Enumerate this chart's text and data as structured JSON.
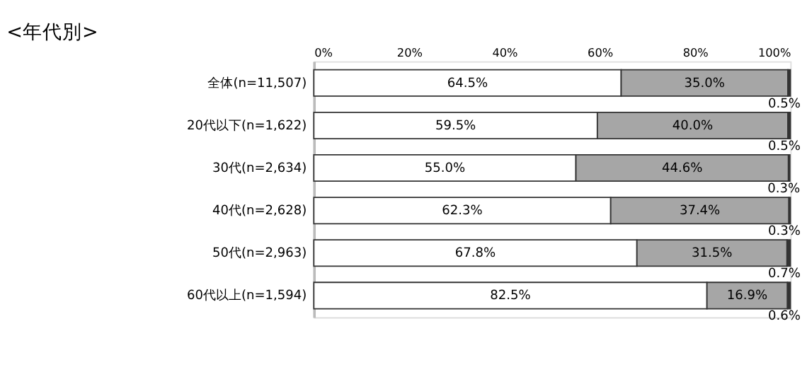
{
  "chart_data": {
    "type": "bar",
    "orientation": "horizontal",
    "stacked": true,
    "title": "<年代別>",
    "categories": [
      "全体(n=11,507)",
      "20代以下(n=1,622)",
      "30代(n=2,634)",
      "40代(n=2,628)",
      "50代(n=2,963)",
      "60代以上(n=1,594)"
    ],
    "series": [
      {
        "color": "#ffffff",
        "values": [
          64.5,
          59.5,
          55.0,
          62.3,
          67.8,
          82.5
        ],
        "value_labels": [
          "64.5%",
          "59.5%",
          "55.0%",
          "62.3%",
          "67.8%",
          "82.5%"
        ]
      },
      {
        "color": "#a6a6a6",
        "values": [
          35.0,
          40.0,
          44.6,
          37.4,
          31.5,
          16.9
        ],
        "value_labels": [
          "35.0%",
          "40.0%",
          "44.6%",
          "37.4%",
          "31.5%",
          "16.9%"
        ]
      },
      {
        "color": "#333333",
        "values": [
          0.5,
          0.5,
          0.3,
          0.3,
          0.7,
          0.6
        ],
        "value_labels": [
          "0.5%",
          "0.5%",
          "0.3%",
          "0.3%",
          "0.7%",
          "0.6%"
        ]
      }
    ],
    "xlim": [
      0,
      100
    ],
    "xticks": [
      {
        "value": 0,
        "label": "0%"
      },
      {
        "value": 20,
        "label": "20%"
      },
      {
        "value": 40,
        "label": "40%"
      },
      {
        "value": 60,
        "label": "60%"
      },
      {
        "value": 80,
        "label": "80%"
      },
      {
        "value": 100,
        "label": "100%"
      }
    ],
    "grid": false,
    "legend": false
  }
}
